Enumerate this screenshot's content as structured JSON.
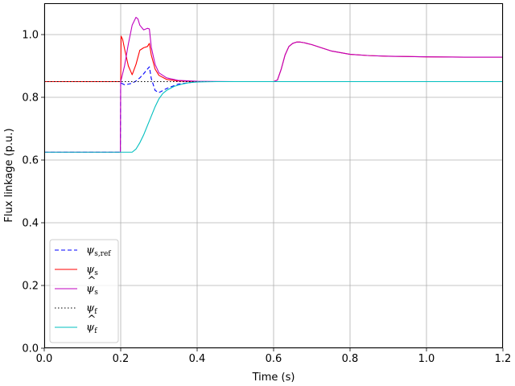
{
  "chart_data": {
    "type": "line",
    "title": "",
    "xlabel": "Time (s)",
    "ylabel": "Flux linkage (p.u.)",
    "xlim": [
      0,
      1.2
    ],
    "ylim": [
      0,
      1.1
    ],
    "xticks": [
      0.0,
      0.2,
      0.4,
      0.6,
      0.8,
      1.0,
      1.2
    ],
    "xtick_labels": [
      "0.0",
      "0.2",
      "0.4",
      "0.6",
      "0.8",
      "1.0",
      "1.2"
    ],
    "yticks": [
      0.0,
      0.2,
      0.4,
      0.6,
      0.8,
      1.0
    ],
    "ytick_labels": [
      "0.0",
      "0.2",
      "0.4",
      "0.6",
      "0.8",
      "1.0"
    ],
    "grid": true,
    "legend_position": "lower-left",
    "series": [
      {
        "name": "ψs,ref",
        "base": "ψ",
        "sub": "s,ref",
        "hat": false,
        "color": "#0000ff",
        "dash": "5,3",
        "x": [
          0,
          0.199,
          0.2,
          0.202,
          0.21,
          0.22,
          0.23,
          0.24,
          0.25,
          0.26,
          0.27,
          0.275,
          0.28,
          0.29,
          0.3,
          0.32,
          0.35,
          0.4,
          0.5,
          0.6,
          0.7,
          1.2
        ],
        "y": [
          0.625,
          0.625,
          0.85,
          0.845,
          0.84,
          0.842,
          0.845,
          0.852,
          0.862,
          0.875,
          0.89,
          0.897,
          0.86,
          0.822,
          0.815,
          0.828,
          0.842,
          0.85,
          0.85,
          0.85,
          0.85,
          0.85
        ]
      },
      {
        "name": "ψs",
        "base": "ψ",
        "sub": "s",
        "hat": false,
        "color": "#ff0000",
        "dash": "",
        "x": [
          0,
          0.199,
          0.2,
          0.201,
          0.205,
          0.21,
          0.22,
          0.23,
          0.24,
          0.25,
          0.26,
          0.27,
          0.275,
          0.28,
          0.29,
          0.3,
          0.32,
          0.35,
          0.4,
          0.5,
          0.6,
          0.61,
          0.62,
          0.63,
          0.64,
          0.65,
          0.66,
          0.67,
          0.68,
          0.7,
          0.72,
          0.75,
          0.8,
          0.85,
          0.9,
          1.0,
          1.1,
          1.2
        ],
        "y": [
          0.85,
          0.85,
          0.85,
          0.995,
          0.985,
          0.955,
          0.9,
          0.872,
          0.905,
          0.95,
          0.958,
          0.962,
          0.972,
          0.935,
          0.89,
          0.87,
          0.857,
          0.852,
          0.85,
          0.85,
          0.85,
          0.855,
          0.89,
          0.935,
          0.962,
          0.972,
          0.976,
          0.976,
          0.974,
          0.968,
          0.96,
          0.948,
          0.937,
          0.933,
          0.931,
          0.929,
          0.928,
          0.928
        ]
      },
      {
        "name": "ψ̂s",
        "base": "ψ",
        "sub": "s",
        "hat": true,
        "color": "#bf00bf",
        "dash": "",
        "x": [
          0,
          0.199,
          0.2,
          0.21,
          0.22,
          0.23,
          0.24,
          0.245,
          0.25,
          0.26,
          0.27,
          0.275,
          0.28,
          0.29,
          0.3,
          0.32,
          0.35,
          0.4,
          0.5,
          0.6,
          0.61,
          0.62,
          0.63,
          0.64,
          0.65,
          0.66,
          0.67,
          0.68,
          0.7,
          0.72,
          0.75,
          0.8,
          0.85,
          0.9,
          1.0,
          1.1,
          1.2
        ],
        "y": [
          0.625,
          0.625,
          0.85,
          0.9,
          0.97,
          1.03,
          1.055,
          1.05,
          1.03,
          1.015,
          1.02,
          1.018,
          0.96,
          0.905,
          0.878,
          0.862,
          0.854,
          0.851,
          0.85,
          0.85,
          0.855,
          0.89,
          0.935,
          0.962,
          0.972,
          0.976,
          0.976,
          0.974,
          0.968,
          0.96,
          0.948,
          0.937,
          0.933,
          0.931,
          0.929,
          0.928,
          0.928
        ]
      },
      {
        "name": "ψf",
        "base": "ψ",
        "sub": "f",
        "hat": false,
        "color": "#000000",
        "dash": "1.5,2.5",
        "x": [
          0,
          1.2
        ],
        "y": [
          0.85,
          0.85
        ]
      },
      {
        "name": "ψ̂f",
        "base": "ψ",
        "sub": "f",
        "hat": true,
        "color": "#00bfbf",
        "dash": "",
        "x": [
          0,
          0.2,
          0.23,
          0.24,
          0.25,
          0.26,
          0.27,
          0.28,
          0.29,
          0.3,
          0.31,
          0.32,
          0.34,
          0.36,
          0.38,
          0.4,
          0.45,
          0.5,
          1.2
        ],
        "y": [
          0.625,
          0.625,
          0.625,
          0.635,
          0.655,
          0.68,
          0.71,
          0.74,
          0.77,
          0.795,
          0.812,
          0.822,
          0.835,
          0.842,
          0.847,
          0.849,
          0.85,
          0.85,
          0.85
        ]
      }
    ]
  }
}
